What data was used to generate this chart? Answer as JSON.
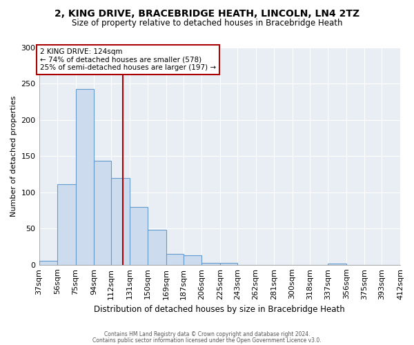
{
  "title": "2, KING DRIVE, BRACEBRIDGE HEATH, LINCOLN, LN4 2TZ",
  "subtitle": "Size of property relative to detached houses in Bracebridge Heath",
  "xlabel": "Distribution of detached houses by size in Bracebridge Heath",
  "ylabel": "Number of detached properties",
  "bar_color": "#ccdcee",
  "bar_edge_color": "#6699cc",
  "bin_edges": [
    37,
    56,
    75,
    94,
    112,
    131,
    150,
    169,
    187,
    206,
    225,
    243,
    262,
    281,
    300,
    318,
    337,
    356,
    375,
    393,
    412
  ],
  "bar_heights": [
    6,
    111,
    243,
    144,
    120,
    80,
    48,
    15,
    13,
    3,
    3,
    0,
    0,
    0,
    0,
    0,
    2,
    0,
    0,
    0
  ],
  "red_line_x": 124,
  "annotation_title": "2 KING DRIVE: 124sqm",
  "annotation_line1": "← 74% of detached houses are smaller (578)",
  "annotation_line2": "25% of semi-detached houses are larger (197) →",
  "ylim": [
    0,
    300
  ],
  "yticks": [
    0,
    50,
    100,
    150,
    200,
    250,
    300
  ],
  "tick_labels": [
    "37sqm",
    "56sqm",
    "75sqm",
    "94sqm",
    "112sqm",
    "131sqm",
    "150sqm",
    "169sqm",
    "187sqm",
    "206sqm",
    "225sqm",
    "243sqm",
    "262sqm",
    "281sqm",
    "300sqm",
    "318sqm",
    "337sqm",
    "356sqm",
    "375sqm",
    "393sqm",
    "412sqm"
  ],
  "footer1": "Contains HM Land Registry data © Crown copyright and database right 2024.",
  "footer2": "Contains public sector information licensed under the Open Government Licence v3.0.",
  "background_color": "#ffffff",
  "plot_bg_color": "#e8eef4",
  "grid_color": "#ffffff",
  "annotation_box_color": "#ffffff",
  "annotation_box_edge": "#aa0000",
  "red_line_color": "#aa0000"
}
